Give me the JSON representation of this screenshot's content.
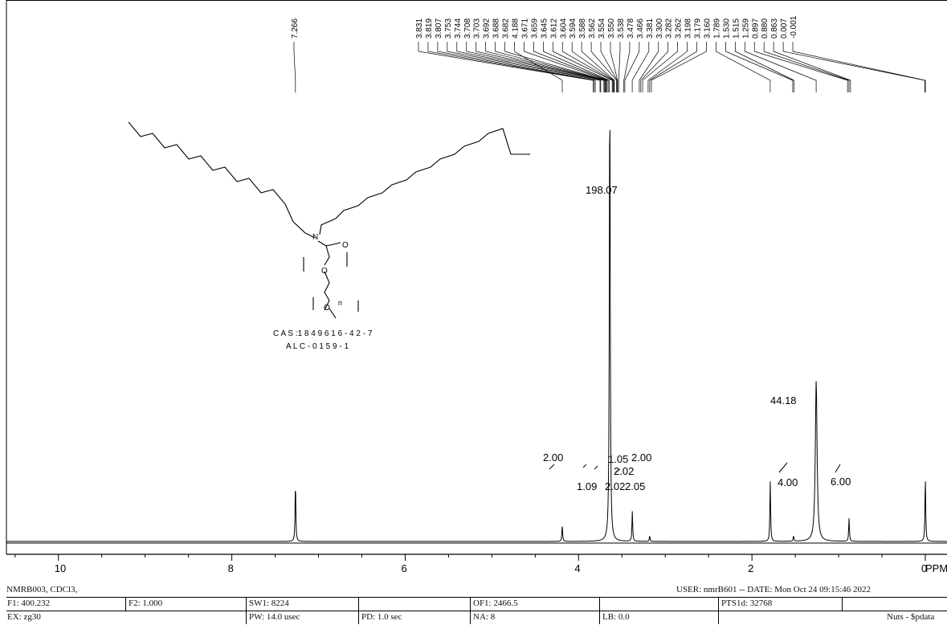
{
  "chart_data": {
    "type": "line",
    "xlabel": "PPM",
    "xlim": [
      10.6,
      -0.25
    ],
    "xticks": [
      "10",
      "8",
      "6",
      "4",
      "2",
      "0"
    ],
    "peak_labels": [
      "7.266",
      "3.831",
      "3.819",
      "3.807",
      "3.753",
      "3.744",
      "3.708",
      "3.703",
      "3.692",
      "3.688",
      "3.682",
      "4.188",
      "3.671",
      "3.659",
      "3.645",
      "3.612",
      "3.604",
      "3.594",
      "3.588",
      "3.562",
      "3.554",
      "3.550",
      "3.538",
      "3.478",
      "3.466",
      "3.381",
      "3.300",
      "3.282",
      "3.262",
      "3.198",
      "3.179",
      "3.160",
      "1.789",
      "1.530",
      "1.515",
      "1.259",
      "0.897",
      "0.880",
      "0.863",
      "0.007",
      "-0.001"
    ],
    "peaks": [
      {
        "ppm": 7.266,
        "height": 0.13
      },
      {
        "ppm": 4.188,
        "height": 0.035
      },
      {
        "ppm": 3.64,
        "height": 1.0
      },
      {
        "ppm": 3.38,
        "height": 0.065
      },
      {
        "ppm": 3.18,
        "height": 0.012
      },
      {
        "ppm": 1.789,
        "height": 0.13
      },
      {
        "ppm": 1.52,
        "height": 0.012
      },
      {
        "ppm": 1.259,
        "height": 0.35
      },
      {
        "ppm": 0.88,
        "height": 0.05
      },
      {
        "ppm": 0.0,
        "height": 0.14
      }
    ],
    "integrals": [
      {
        "label": "2.00",
        "ppm": 4.19
      },
      {
        "label": "198.07",
        "ppm": 3.64
      },
      {
        "label": "1.09",
        "ppm": 3.55
      },
      {
        "label": "1.05",
        "ppm": 3.45
      },
      {
        "label": "2.00",
        "ppm": 3.3
      },
      {
        "label": "2.02",
        "ppm": 3.38
      },
      {
        "label": "2.02",
        "ppm": 3.4
      },
      {
        "label": "2.05",
        "ppm": 3.18
      },
      {
        "label": "4.00",
        "ppm": 1.52
      },
      {
        "label": "44.18",
        "ppm": 1.26
      },
      {
        "label": "6.00",
        "ppm": 0.88
      }
    ]
  },
  "molecule": {
    "atoms": [
      "N",
      "O",
      "O",
      "O",
      "n"
    ],
    "cas": "C A S :1 8 4 9 6 1 6 - 4 2 - 7",
    "code": "A L C - 0 1 5 9 - 1"
  },
  "footer": {
    "title": "NMRB003, CDCl3,",
    "user_date": "USER: nmrB601 -- DATE: Mon Oct 24 09:15:46 2022",
    "f1": "F1: 400.232",
    "f2": "F2: 1.000",
    "sw1": "SW1: 8224",
    "of1": "OF1: 2466.5",
    "pts": "PTS1d: 32768",
    "ex": "EX: zg30",
    "pw": "PW: 14.0 usec",
    "pd": "PD: 1.0   sec",
    "na": "NA: 8",
    "lb": "LB: 0.0",
    "nuts": "Nuts - $pdata"
  }
}
